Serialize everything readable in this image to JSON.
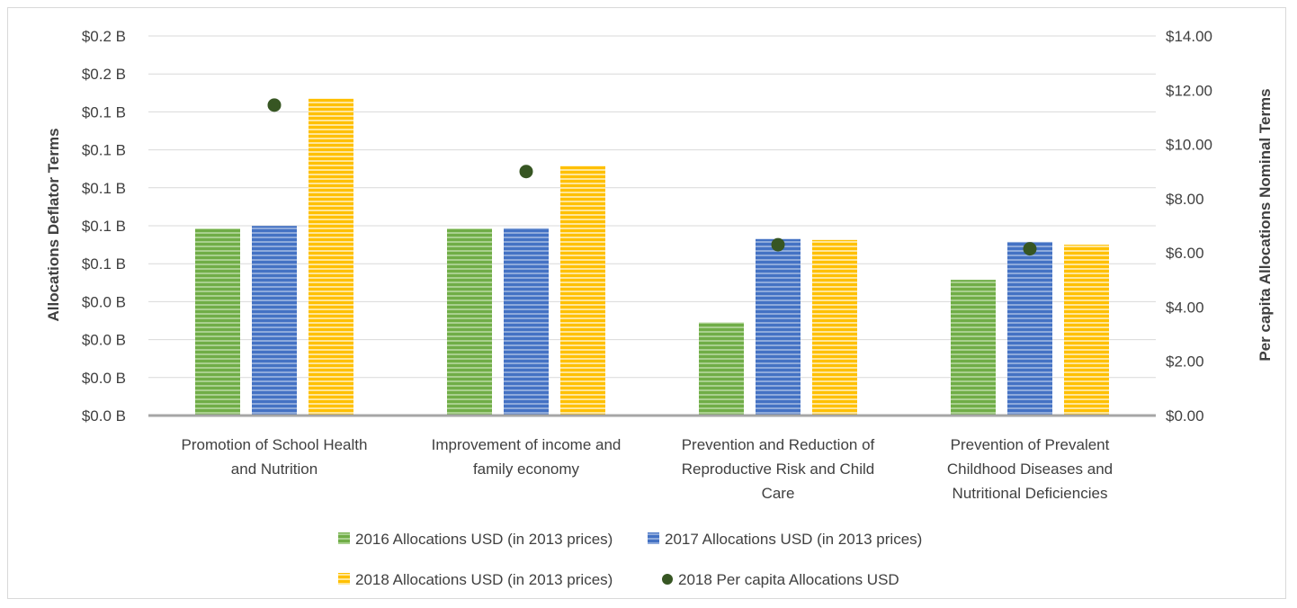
{
  "chart_data": {
    "type": "bar",
    "categories": [
      [
        "Promotion of School Health",
        "and Nutrition"
      ],
      [
        "Improvement of income and",
        "family economy"
      ],
      [
        "Prevention and Reduction of",
        "Reproductive Risk and Child",
        "Care"
      ],
      [
        "Prevention of Prevalent",
        "Childhood Diseases and",
        "Nutritional Deficiencies"
      ]
    ],
    "series": [
      {
        "name": "2016 Allocations USD (in 2013 prices)",
        "axis": "left",
        "kind": "bar",
        "color": "#70ad47",
        "values": [
          0.0985,
          0.0985,
          0.049,
          0.0715
        ]
      },
      {
        "name": "2017 Allocations USD (in 2013 prices)",
        "axis": "left",
        "kind": "bar",
        "color": "#4472c4",
        "values": [
          0.0999,
          0.0987,
          0.093,
          0.0915
        ]
      },
      {
        "name": "2018 Allocations USD (in 2013 prices)",
        "axis": "left",
        "kind": "bar",
        "color": "#ffc000",
        "values": [
          0.167,
          0.1315,
          0.0925,
          0.09
        ]
      },
      {
        "name": "2018 Per capita Allocations USD",
        "axis": "right",
        "kind": "scatter",
        "color": "#375623",
        "values": [
          11.45,
          9.0,
          6.3,
          6.15
        ]
      }
    ],
    "left_axis": {
      "label": "Allocations Deflator Terms",
      "ticks": [
        "$0.0 B",
        "$0.0 B",
        "$0.0 B",
        "$0.0 B",
        "$0.1 B",
        "$0.1 B",
        "$0.1 B",
        "$0.1 B",
        "$0.1 B",
        "$0.2 B",
        "$0.2 B"
      ],
      "ylim": [
        0,
        0.2
      ]
    },
    "right_axis": {
      "label": "Per capita Allocations Nominal Terms",
      "ticks": [
        "$0.00",
        "$2.00",
        "$4.00",
        "$6.00",
        "$8.00",
        "$10.00",
        "$12.00",
        "$14.00"
      ],
      "ylim": [
        0,
        14
      ]
    },
    "grid": true,
    "legend_position": "bottom"
  }
}
